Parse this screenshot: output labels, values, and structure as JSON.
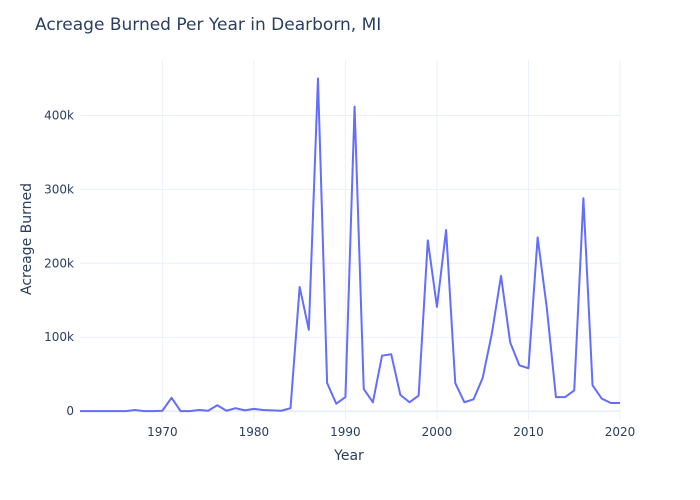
{
  "chart_data": {
    "type": "line",
    "title": "Acreage Burned Per Year in Dearborn, MI",
    "xlabel": "Year",
    "ylabel": "Acreage Burned",
    "xlim": [
      1961,
      2020
    ],
    "ylim": [
      -12000,
      475000
    ],
    "x_ticks": [
      1970,
      1980,
      1990,
      2000,
      2010,
      2020
    ],
    "y_ticks": [
      {
        "value": 0,
        "label": "0"
      },
      {
        "value": 100000,
        "label": "100k"
      },
      {
        "value": 200000,
        "label": "200k"
      },
      {
        "value": 300000,
        "label": "300k"
      },
      {
        "value": 400000,
        "label": "400k"
      }
    ],
    "grid": true,
    "line_color": "#636efa",
    "series": [
      {
        "x": [
          1961,
          1962,
          1963,
          1964,
          1965,
          1966,
          1967,
          1968,
          1969,
          1970,
          1971,
          1972,
          1973,
          1974,
          1975,
          1976,
          1977,
          1978,
          1979,
          1980,
          1981,
          1982,
          1983,
          1984,
          1985,
          1986,
          1987,
          1988,
          1989,
          1990,
          1991,
          1992,
          1993,
          1994,
          1995,
          1996,
          1997,
          1998,
          1999,
          2000,
          2001,
          2002,
          2003,
          2004,
          2005,
          2006,
          2007,
          2008,
          2009,
          2010,
          2011,
          2012,
          2013,
          2014,
          2015,
          2016,
          2017,
          2018,
          2019,
          2020
        ],
        "values": [
          0,
          0,
          0,
          0,
          0,
          0,
          1500,
          0,
          0,
          500,
          18000,
          0,
          0,
          1500,
          500,
          8000,
          500,
          4000,
          1000,
          3000,
          1500,
          1000,
          500,
          4000,
          168000,
          110000,
          450000,
          38000,
          10000,
          19000,
          412000,
          30000,
          12000,
          75000,
          77000,
          22000,
          12000,
          21000,
          231000,
          141000,
          245000,
          38000,
          12000,
          16000,
          45000,
          105000,
          183000,
          93000,
          62000,
          58000,
          235000,
          140000,
          19000,
          19000,
          28000,
          288000,
          35000,
          17000,
          11000,
          11000
        ]
      }
    ]
  }
}
